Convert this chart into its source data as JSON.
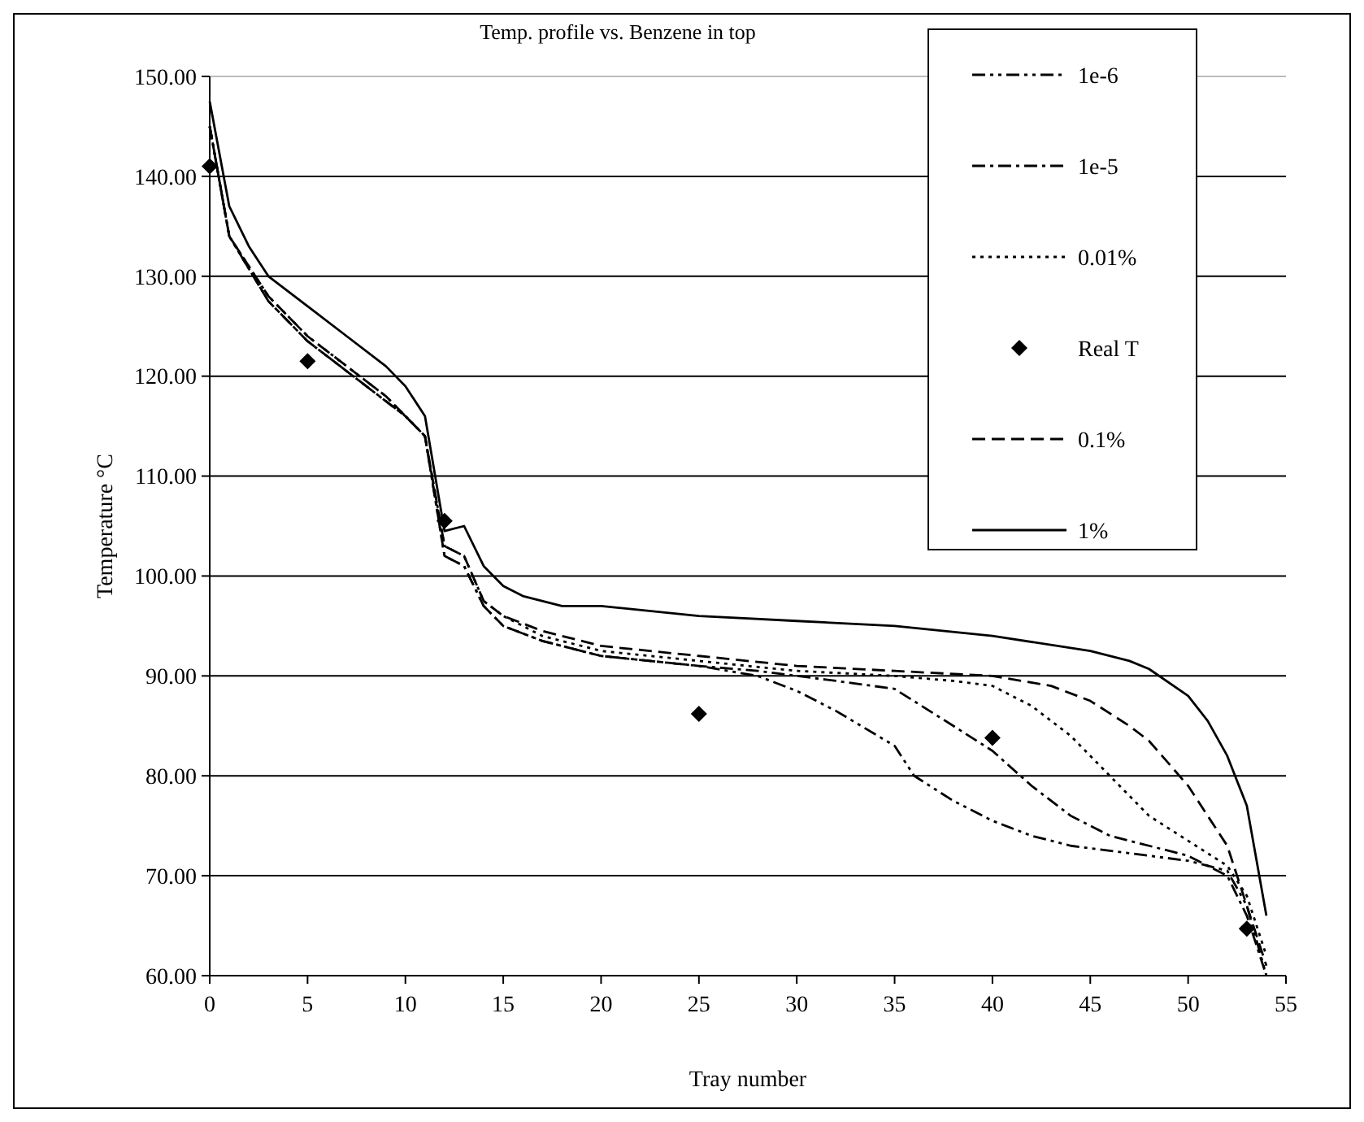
{
  "chart_data": {
    "type": "line",
    "title": "Temp. profile vs. Benzene in top",
    "xlabel": "Tray number",
    "ylabel": "Temperature °C",
    "xlim": [
      0,
      55
    ],
    "xticks": [
      0,
      5,
      10,
      15,
      20,
      25,
      30,
      35,
      40,
      45,
      50,
      55
    ],
    "ylim": [
      60,
      150
    ],
    "yticks": [
      {
        "value": 60,
        "label": "60.00"
      },
      {
        "value": 70,
        "label": "70.00"
      },
      {
        "value": 80,
        "label": "80.00"
      },
      {
        "value": 90,
        "label": "90.00"
      },
      {
        "value": 100,
        "label": "100.00"
      },
      {
        "value": 110,
        "label": "110.00"
      },
      {
        "value": 120,
        "label": "120.00"
      },
      {
        "value": 130,
        "label": "130.00"
      },
      {
        "value": 140,
        "label": "140.00"
      },
      {
        "value": 150,
        "label": "150.00"
      }
    ],
    "grid": "y",
    "legend": "top right",
    "marker": "none",
    "series": [
      {
        "name": "1e-6",
        "color": "#000000",
        "line_style": "dashdotdot",
        "x": [
          0,
          1,
          3,
          5,
          7,
          9,
          10,
          11,
          12,
          13,
          14,
          15,
          17,
          20,
          25,
          28,
          30,
          32,
          35,
          36,
          38,
          40,
          42,
          44,
          46,
          48,
          50,
          52,
          53,
          54
        ],
        "values": [
          145,
          134,
          127.5,
          123.5,
          120.5,
          117.5,
          116,
          114,
          102,
          101,
          97,
          95,
          93.5,
          92,
          91,
          90,
          88.5,
          86.5,
          83,
          80,
          77.5,
          75.5,
          74,
          73,
          72.5,
          72,
          71.5,
          70.5,
          67,
          60
        ]
      },
      {
        "name": "1e-5",
        "color": "#000000",
        "line_style": "dashdot",
        "x": [
          0,
          1,
          3,
          5,
          7,
          9,
          10,
          11,
          12,
          13,
          14,
          15,
          17,
          20,
          25,
          28,
          30,
          32,
          35,
          38,
          40,
          42,
          44,
          46,
          48,
          50,
          52,
          53,
          54
        ],
        "values": [
          145,
          134,
          127.5,
          123.5,
          120.5,
          117.5,
          116,
          114,
          102,
          101,
          97,
          95,
          93.5,
          92,
          91,
          90.5,
          90,
          89.5,
          88.7,
          85,
          82.5,
          79,
          76,
          74,
          73,
          72,
          70,
          66,
          60
        ]
      },
      {
        "name": "0.01%",
        "color": "#000000",
        "line_style": "dotted",
        "x": [
          0,
          1,
          3,
          5,
          7,
          9,
          10,
          11,
          12,
          13,
          14,
          15,
          17,
          20,
          25,
          30,
          35,
          38,
          40,
          42,
          44,
          46,
          48,
          50,
          52,
          53,
          54
        ],
        "values": [
          145,
          134,
          128,
          124,
          121,
          118,
          116,
          114,
          103,
          102,
          97.5,
          96,
          94,
          92.5,
          91.5,
          90.5,
          90,
          89.5,
          89,
          87,
          84,
          80,
          76,
          73.5,
          71,
          68,
          62
        ]
      },
      {
        "name": "Real T",
        "type": "scatter",
        "marker": "diamond",
        "color": "#000000",
        "x": [
          0,
          5,
          12,
          25,
          40,
          53
        ],
        "values": [
          141,
          121.5,
          105.5,
          86.2,
          83.8,
          64.7
        ]
      },
      {
        "name": "0.1%",
        "color": "#000000",
        "line_style": "dashed",
        "x": [
          0,
          1,
          3,
          5,
          7,
          9,
          10,
          11,
          12,
          13,
          14,
          15,
          17,
          20,
          25,
          30,
          35,
          40,
          43,
          45,
          47,
          48,
          50,
          52,
          53,
          54
        ],
        "values": [
          145,
          134,
          128,
          124,
          121,
          118,
          116,
          114,
          103,
          102,
          97.5,
          96,
          94.5,
          93,
          92,
          91,
          90.5,
          90,
          89,
          87.5,
          85,
          83.5,
          79,
          73,
          67,
          61
        ]
      },
      {
        "name": "1%",
        "color": "#000000",
        "line_style": "solid",
        "x": [
          0,
          1,
          2,
          3,
          5,
          7,
          9,
          10,
          11,
          12,
          13,
          14,
          15,
          16,
          18,
          20,
          25,
          30,
          35,
          40,
          45,
          47,
          48,
          50,
          51,
          52,
          53,
          54
        ],
        "values": [
          147.5,
          137,
          133,
          130,
          127,
          124,
          121,
          119,
          116,
          104.5,
          105,
          101,
          99,
          98,
          97,
          97,
          96,
          95.5,
          95,
          94,
          92.5,
          91.5,
          90.7,
          88,
          85.5,
          82,
          77,
          66
        ]
      }
    ]
  }
}
